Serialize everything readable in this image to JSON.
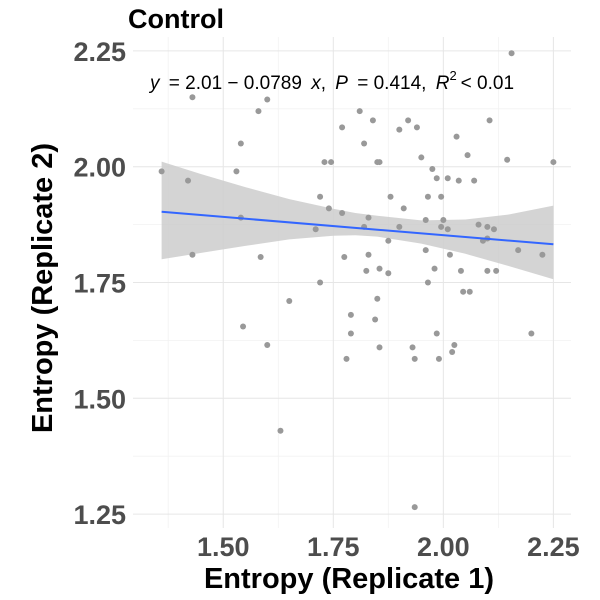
{
  "chart_data": {
    "type": "scatter",
    "title": "Control",
    "xlabel": "Entropy (Replicate 1)",
    "ylabel": "Entropy (Replicate 2)",
    "xlim": [
      1.295,
      2.29
    ],
    "ylim": [
      1.22,
      2.28
    ],
    "xticks": [
      1.5,
      1.75,
      2.0,
      2.25
    ],
    "xtick_labels": [
      "1.50",
      "1.75",
      "2.00",
      "2.25"
    ],
    "yticks": [
      1.25,
      1.5,
      1.75,
      2.0,
      2.25
    ],
    "ytick_labels": [
      "1.25",
      "1.50",
      "1.75",
      "2.00",
      "2.25"
    ],
    "grid": true,
    "point_color": "#999999",
    "line_color": "#3366ff",
    "band_color": "#cccccc",
    "annotation": {
      "y_eq": "y",
      "equation": "= 2.01 − 0.0789",
      "x_var": "x",
      "p_name": "P",
      "p_text": "= 0.414,",
      "r_name": "R",
      "r_sup": "2",
      "r_text": "< 0.01"
    },
    "regression": {
      "intercept": 2.01,
      "slope": -0.0789,
      "x_range": [
        1.36,
        2.25
      ]
    },
    "confidence_band": {
      "x": [
        1.36,
        1.45,
        1.55,
        1.65,
        1.75,
        1.8,
        1.85,
        1.95,
        2.05,
        2.15,
        2.25
      ],
      "lower": [
        1.8,
        1.814,
        1.829,
        1.843,
        1.851,
        1.852,
        1.849,
        1.834,
        1.812,
        1.785,
        1.757
      ],
      "upper": [
        2.011,
        1.984,
        1.956,
        1.93,
        1.909,
        1.9,
        1.894,
        1.884,
        1.886,
        1.897,
        1.916
      ]
    },
    "points": [
      {
        "x": 1.36,
        "y": 1.99
      },
      {
        "x": 1.42,
        "y": 1.97
      },
      {
        "x": 1.43,
        "y": 2.15
      },
      {
        "x": 1.43,
        "y": 1.81
      },
      {
        "x": 1.53,
        "y": 1.99
      },
      {
        "x": 1.54,
        "y": 2.05
      },
      {
        "x": 1.54,
        "y": 1.89
      },
      {
        "x": 1.545,
        "y": 1.655
      },
      {
        "x": 1.58,
        "y": 2.12
      },
      {
        "x": 1.585,
        "y": 1.805
      },
      {
        "x": 1.6,
        "y": 2.145
      },
      {
        "x": 1.6,
        "y": 1.615
      },
      {
        "x": 1.63,
        "y": 1.43
      },
      {
        "x": 1.65,
        "y": 1.71
      },
      {
        "x": 1.71,
        "y": 1.865
      },
      {
        "x": 1.72,
        "y": 1.935
      },
      {
        "x": 1.72,
        "y": 1.75
      },
      {
        "x": 1.73,
        "y": 2.01
      },
      {
        "x": 1.745,
        "y": 2.01
      },
      {
        "x": 1.74,
        "y": 1.91
      },
      {
        "x": 1.77,
        "y": 1.9
      },
      {
        "x": 1.77,
        "y": 2.085
      },
      {
        "x": 1.775,
        "y": 1.805
      },
      {
        "x": 1.78,
        "y": 1.585
      },
      {
        "x": 1.79,
        "y": 1.68
      },
      {
        "x": 1.79,
        "y": 1.64
      },
      {
        "x": 1.81,
        "y": 2.12
      },
      {
        "x": 1.82,
        "y": 2.05
      },
      {
        "x": 1.82,
        "y": 1.87
      },
      {
        "x": 1.825,
        "y": 1.775
      },
      {
        "x": 1.83,
        "y": 1.89
      },
      {
        "x": 1.83,
        "y": 1.81
      },
      {
        "x": 1.84,
        "y": 2.1
      },
      {
        "x": 1.845,
        "y": 1.67
      },
      {
        "x": 1.85,
        "y": 2.01
      },
      {
        "x": 1.855,
        "y": 2.01
      },
      {
        "x": 1.855,
        "y": 1.78
      },
      {
        "x": 1.85,
        "y": 1.715
      },
      {
        "x": 1.855,
        "y": 1.61
      },
      {
        "x": 1.875,
        "y": 1.84
      },
      {
        "x": 1.875,
        "y": 1.77
      },
      {
        "x": 1.88,
        "y": 1.935
      },
      {
        "x": 1.9,
        "y": 2.08
      },
      {
        "x": 1.9,
        "y": 1.87
      },
      {
        "x": 1.91,
        "y": 1.91
      },
      {
        "x": 1.92,
        "y": 2.1
      },
      {
        "x": 1.93,
        "y": 1.61
      },
      {
        "x": 1.935,
        "y": 1.585
      },
      {
        "x": 1.935,
        "y": 1.265
      },
      {
        "x": 1.94,
        "y": 2.085
      },
      {
        "x": 1.95,
        "y": 2.02
      },
      {
        "x": 1.96,
        "y": 1.885
      },
      {
        "x": 1.96,
        "y": 1.82
      },
      {
        "x": 1.965,
        "y": 1.75
      },
      {
        "x": 1.965,
        "y": 1.935
      },
      {
        "x": 1.975,
        "y": 1.995
      },
      {
        "x": 1.985,
        "y": 1.975
      },
      {
        "x": 1.98,
        "y": 1.78
      },
      {
        "x": 1.985,
        "y": 1.64
      },
      {
        "x": 1.99,
        "y": 1.585
      },
      {
        "x": 1.995,
        "y": 1.935
      },
      {
        "x": 1.995,
        "y": 1.87
      },
      {
        "x": 2.0,
        "y": 1.885
      },
      {
        "x": 2.01,
        "y": 1.975
      },
      {
        "x": 2.01,
        "y": 1.865
      },
      {
        "x": 2.015,
        "y": 1.81
      },
      {
        "x": 2.02,
        "y": 1.6
      },
      {
        "x": 2.025,
        "y": 1.615
      },
      {
        "x": 2.03,
        "y": 2.065
      },
      {
        "x": 2.035,
        "y": 1.97
      },
      {
        "x": 2.04,
        "y": 1.775
      },
      {
        "x": 2.045,
        "y": 1.73
      },
      {
        "x": 2.055,
        "y": 2.025
      },
      {
        "x": 2.06,
        "y": 1.73
      },
      {
        "x": 2.07,
        "y": 1.97
      },
      {
        "x": 2.08,
        "y": 1.875
      },
      {
        "x": 2.09,
        "y": 1.84
      },
      {
        "x": 2.1,
        "y": 1.87
      },
      {
        "x": 2.1,
        "y": 1.845
      },
      {
        "x": 2.1,
        "y": 1.775
      },
      {
        "x": 2.105,
        "y": 2.1
      },
      {
        "x": 2.115,
        "y": 1.865
      },
      {
        "x": 2.12,
        "y": 1.775
      },
      {
        "x": 2.145,
        "y": 2.015
      },
      {
        "x": 2.155,
        "y": 2.245
      },
      {
        "x": 2.17,
        "y": 1.82
      },
      {
        "x": 2.2,
        "y": 1.64
      },
      {
        "x": 2.225,
        "y": 1.81
      },
      {
        "x": 2.25,
        "y": 2.01
      }
    ]
  }
}
